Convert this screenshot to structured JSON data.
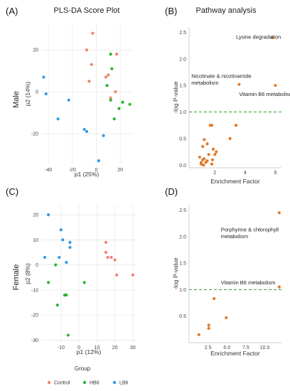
{
  "panel_letters": [
    "(A)",
    "(B)",
    "(C)",
    "(D)"
  ],
  "row_labels": {
    "male": "Male",
    "female": "Female"
  },
  "legend": {
    "title": "Group",
    "entries": [
      {
        "name": "Control",
        "color": "#f08070"
      },
      {
        "name": "HB6",
        "color": "#2ab52a"
      },
      {
        "name": "LB6",
        "color": "#3399e6"
      }
    ]
  },
  "chart_data": [
    {
      "id": "A",
      "type": "scatter",
      "title": "PLS-DA Score Plot",
      "xlabel": "p1 (25%)",
      "ylabel": "p2 (14%)",
      "xlim": [
        -46,
        30
      ],
      "ylim": [
        -35,
        33
      ],
      "xticks": [
        -40,
        -20,
        0,
        20
      ],
      "yticks": [
        -20,
        0,
        20
      ],
      "grid": true,
      "series": [
        {
          "name": "Control",
          "color": "#f08070",
          "points": [
            [
              -3,
              28
            ],
            [
              -8,
              20
            ],
            [
              -4,
              13
            ],
            [
              17,
              18
            ],
            [
              8,
              7
            ],
            [
              -6,
              5
            ],
            [
              16,
              0
            ],
            [
              10,
              8
            ],
            [
              12,
              -3
            ]
          ]
        },
        {
          "name": "HB6",
          "color": "#2ab52a",
          "points": [
            [
              12,
              18
            ],
            [
              13,
              11
            ],
            [
              9,
              3
            ],
            [
              22,
              -5
            ],
            [
              28,
              -6
            ],
            [
              19,
              -8
            ],
            [
              15,
              -13
            ],
            [
              12,
              -4
            ]
          ]
        },
        {
          "name": "LB6",
          "color": "#3399e6",
          "points": [
            [
              -44,
              7
            ],
            [
              -42,
              -1
            ],
            [
              -23,
              -4
            ],
            [
              -32,
              -13
            ],
            [
              -10,
              -18
            ],
            [
              -8,
              -19
            ],
            [
              6,
              -21
            ],
            [
              2,
              -33
            ]
          ]
        }
      ]
    },
    {
      "id": "B",
      "type": "scatter",
      "title": "Pathway analysis",
      "xlabel": "Enrichment Factor",
      "ylabel": "-log P-value",
      "xlim": [
        0.3,
        6.4
      ],
      "ylim": [
        -0.05,
        2.6
      ],
      "xticks": [
        2,
        4,
        6
      ],
      "yticks": [
        0.0,
        0.5,
        1.0,
        1.5,
        2.0,
        2.5
      ],
      "threshold": 1.0,
      "point_color": "#e07a2a",
      "points": [
        [
          5.8,
          2.4
        ],
        [
          3.6,
          1.52
        ],
        [
          6.0,
          1.5
        ],
        [
          1.1,
          0.02
        ],
        [
          1.2,
          0.1
        ],
        [
          1.0,
          0.15
        ],
        [
          1.3,
          0.12
        ],
        [
          1.4,
          0.05
        ],
        [
          1.5,
          0.08
        ],
        [
          1.6,
          0.2
        ],
        [
          1.2,
          0.35
        ],
        [
          1.3,
          0.48
        ],
        [
          1.5,
          0.4
        ],
        [
          1.7,
          0.75
        ],
        [
          1.8,
          0.75
        ],
        [
          1.9,
          0.3
        ],
        [
          2.0,
          0.2
        ],
        [
          1.85,
          0.1
        ],
        [
          2.1,
          0.25
        ],
        [
          3.0,
          0.5
        ],
        [
          3.4,
          0.75
        ],
        [
          1.1,
          0.05
        ],
        [
          1.8,
          0.02
        ],
        [
          1.25,
          0.0
        ]
      ],
      "annotations": [
        {
          "lines": [
            "Lysine degradation"
          ],
          "x": 3.4,
          "y": 2.38
        },
        {
          "lines": [
            "Nicotinate & nicotinamide",
            "metabolism"
          ],
          "x": 0.45,
          "y": 1.64
        },
        {
          "lines": [
            "Vitamin B6 metabolism"
          ],
          "x": 3.6,
          "y": 1.3
        }
      ]
    },
    {
      "id": "C",
      "type": "scatter",
      "xlabel": "p1 (12%)",
      "ylabel": "p2 (8%)",
      "xlim": [
        -21,
        32
      ],
      "ylim": [
        -31,
        24
      ],
      "xticks": [
        -10,
        0,
        10,
        20,
        30
      ],
      "yticks": [
        -30,
        -20,
        -10,
        0,
        10,
        20
      ],
      "grid": true,
      "series": [
        {
          "name": "Control",
          "color": "#f08070",
          "points": [
            [
              15,
              9
            ],
            [
              15,
              5
            ],
            [
              16,
              3
            ],
            [
              18,
              3
            ],
            [
              20,
              2
            ],
            [
              21,
              -4
            ],
            [
              30,
              -4
            ]
          ]
        },
        {
          "name": "HB6",
          "color": "#2ab52a",
          "points": [
            [
              -17,
              -7
            ],
            [
              -13,
              0
            ],
            [
              -12,
              -16
            ],
            [
              -8,
              -12
            ],
            [
              -7,
              -12
            ],
            [
              3,
              -7
            ],
            [
              -6,
              -28
            ]
          ]
        },
        {
          "name": "LB6",
          "color": "#3399e6",
          "points": [
            [
              -17,
              20
            ],
            [
              -19,
              3
            ],
            [
              -10,
              14
            ],
            [
              -11,
              3
            ],
            [
              -9,
              10
            ],
            [
              -5,
              9
            ],
            [
              -5,
              7
            ],
            [
              -7,
              1
            ]
          ]
        }
      ]
    },
    {
      "id": "D",
      "type": "scatter",
      "xlabel": "Enrichment Factor",
      "ylabel": "-log P-value",
      "xlim": [
        0,
        12.2
      ],
      "ylim": [
        0.0,
        2.6
      ],
      "xticks": [
        2.5,
        5.0,
        7.5,
        10.0
      ],
      "xtick_labels": [
        "2.5",
        "5.0",
        "7.5",
        "10.0"
      ],
      "yticks": [
        0.5,
        1.0,
        1.5,
        2.0,
        2.5
      ],
      "threshold": 1.0,
      "point_color": "#e07a2a",
      "points": [
        [
          11.9,
          2.45
        ],
        [
          11.9,
          1.05
        ],
        [
          3.3,
          0.83
        ],
        [
          4.9,
          0.47
        ],
        [
          2.6,
          0.33
        ],
        [
          2.6,
          0.27
        ],
        [
          1.3,
          0.15
        ]
      ],
      "annotations": [
        {
          "lines": [
            "Porphyrine & chlorophyll",
            "metabolism"
          ],
          "x": 4.2,
          "y": 2.1
        },
        {
          "lines": [
            "Vitamin B6 metabolism"
          ],
          "x": 4.2,
          "y": 1.1
        }
      ]
    }
  ]
}
